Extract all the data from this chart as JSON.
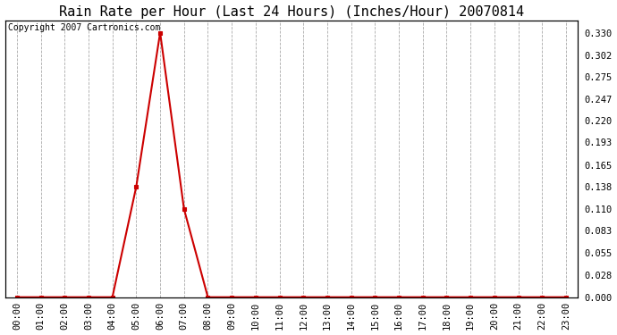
{
  "title": "Rain Rate per Hour (Last 24 Hours) (Inches/Hour) 20070814",
  "copyright_text": "Copyright 2007 Cartronics.com",
  "hours": [
    0,
    1,
    2,
    3,
    4,
    5,
    6,
    7,
    8,
    9,
    10,
    11,
    12,
    13,
    14,
    15,
    16,
    17,
    18,
    19,
    20,
    21,
    22,
    23
  ],
  "values": [
    0.0,
    0.0,
    0.0,
    0.0,
    0.0,
    0.138,
    0.33,
    0.11,
    0.0,
    0.0,
    0.0,
    0.0,
    0.0,
    0.0,
    0.0,
    0.0,
    0.0,
    0.0,
    0.0,
    0.0,
    0.0,
    0.0,
    0.0,
    0.0
  ],
  "line_color": "#cc0000",
  "marker": "s",
  "marker_size": 3,
  "yticks": [
    0.0,
    0.028,
    0.055,
    0.083,
    0.11,
    0.138,
    0.165,
    0.193,
    0.22,
    0.247,
    0.275,
    0.302,
    0.33
  ],
  "ylim": [
    0.0,
    0.345
  ],
  "xlim": [
    -0.5,
    23.5
  ],
  "background_color": "#ffffff",
  "plot_background": "#ffffff",
  "grid_color": "#aaaaaa",
  "title_fontsize": 11,
  "copyright_fontsize": 7,
  "tick_label_fontsize": 7.5
}
